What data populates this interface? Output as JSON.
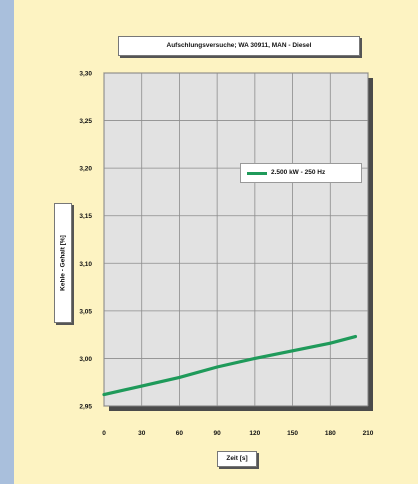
{
  "chart_data": {
    "type": "line",
    "title": "Aufschlungsversuche; WA 30911, MAN - Diesel",
    "xlabel": "Zeit [s]",
    "ylabel": "Kehle - Gehalt [%]",
    "xlim": [
      0,
      210
    ],
    "ylim": [
      2.95,
      3.3
    ],
    "x_ticks": [
      "0",
      "30",
      "60",
      "90",
      "120",
      "150",
      "180",
      "210"
    ],
    "y_ticks": [
      "2,95",
      "3,00",
      "3,05",
      "3,10",
      "3,15",
      "3,20",
      "3,25",
      "3,30"
    ],
    "grid": true,
    "legend_position": "upper-right",
    "series": [
      {
        "name": "2.500 kW - 250 Hz",
        "color": "#1f9a5a",
        "x": [
          0,
          30,
          60,
          90,
          120,
          150,
          180,
          200
        ],
        "y": [
          2.962,
          2.971,
          2.98,
          2.991,
          3.0,
          3.008,
          3.016,
          3.023
        ]
      }
    ]
  }
}
